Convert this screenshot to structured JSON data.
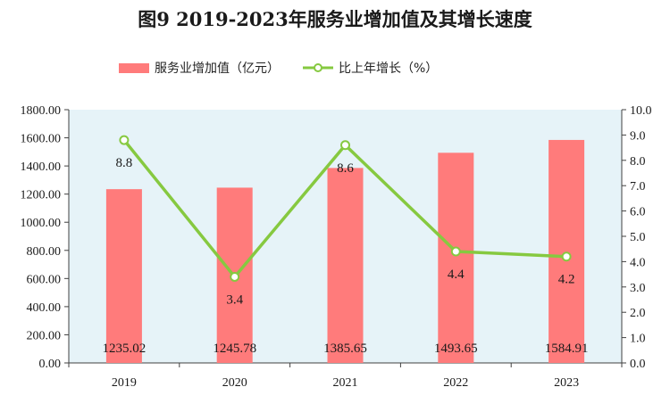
{
  "chart_data": {
    "type": "bar",
    "title": "图9   2019-2023年服务业增加值及其增长速度",
    "categories": [
      "2019",
      "2020",
      "2021",
      "2022",
      "2023"
    ],
    "series": [
      {
        "name": "服务业增加值（亿元）",
        "type": "bar",
        "axis": "left",
        "color": "#ff7b7b",
        "values": [
          1235.02,
          1245.78,
          1385.65,
          1493.65,
          1584.91
        ],
        "value_labels": [
          "1235.02",
          "1245.78",
          "1385.65",
          "1493.65",
          "1584.91"
        ]
      },
      {
        "name": "比上年增长（%）",
        "type": "line",
        "axis": "right",
        "color": "#86c940",
        "values": [
          8.8,
          3.4,
          8.6,
          4.4,
          4.2
        ],
        "value_labels": [
          "8.8",
          "3.4",
          "8.6",
          "4.4",
          "4.2"
        ]
      }
    ],
    "y_left": {
      "range": [
        0,
        1800
      ],
      "ticks": [
        "0.00",
        "200.00",
        "400.00",
        "600.00",
        "800.00",
        "1000.00",
        "1200.00",
        "1400.00",
        "1600.00",
        "1800.00"
      ]
    },
    "y_right": {
      "range": [
        0,
        10
      ],
      "ticks": [
        "0.0",
        "1.0",
        "2.0",
        "3.0",
        "4.0",
        "5.0",
        "6.0",
        "7.0",
        "8.0",
        "9.0",
        "10.0"
      ]
    },
    "plot_background": "#e6f3f8",
    "grid": false,
    "legend": "top-center"
  }
}
